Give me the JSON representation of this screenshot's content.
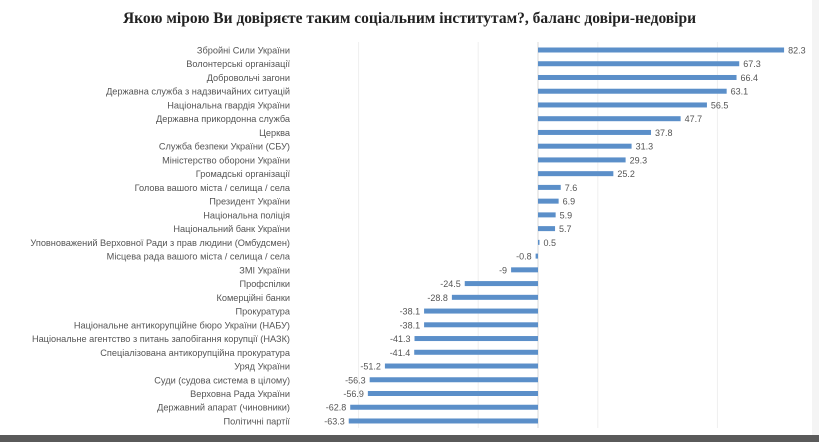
{
  "chart_data": {
    "type": "bar",
    "orientation": "horizontal",
    "title": "Якою мірою Ви довіряєте таким соціальним інститутам?, баланс довіри-недовіри",
    "xlabel": "",
    "ylabel": "",
    "xlim": [
      -70,
      85
    ],
    "grid": true,
    "bar_color": "#5b8fc9",
    "categories": [
      "Збройні Сили України",
      "Волонтерські організації",
      "Добровольчі загони",
      "Державна служба з надзвичайних ситуацій",
      "Національна гвардія України",
      "Державна прикордонна служба",
      "Церква",
      "Служба безпеки України (СБУ)",
      "Міністерство оборони України",
      "Громадські організації",
      "Голова вашого міста / селища / села",
      "Президент України",
      "Національна поліція",
      "Національний банк України",
      "Уповноважений Верховної Ради  з прав людини (Омбудсмен)",
      "Місцева рада вашого міста / селища / села",
      "ЗМІ України",
      "Профспілки",
      "Комерційні банки",
      "Прокуратура",
      "Національне антикорупційне бюро України (НАБУ)",
      "Національне агентство з питань запобігання корупції (НАЗК)",
      "Спеціалізована антикорупційна прокуратура",
      "Уряд України",
      "Суди (судова система в цілому)",
      "Верховна Рада України",
      "Державний апарат (чиновники)",
      "Політичні партії"
    ],
    "values": [
      82.3,
      67.3,
      66.4,
      63.1,
      56.5,
      47.7,
      37.8,
      31.3,
      29.3,
      25.2,
      7.6,
      6.9,
      5.9,
      5.7,
      0.5,
      -0.8,
      -9,
      -24.5,
      -28.8,
      -38.1,
      -38.1,
      -41.3,
      -41.4,
      -51.2,
      -56.3,
      -56.9,
      -62.8,
      -63.3
    ]
  }
}
